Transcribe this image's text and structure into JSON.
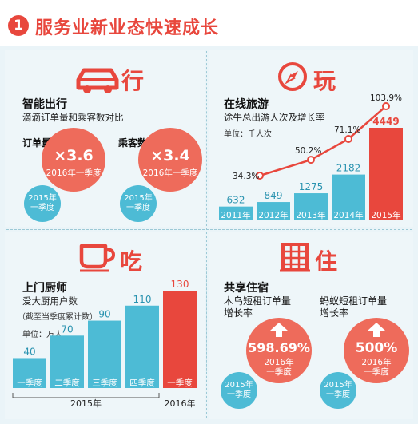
{
  "header": {
    "number": "1",
    "title": "服务业新业态快速成长"
  },
  "xing": {
    "category": "行",
    "icon": "car-icon",
    "section_title": "智能出行",
    "subtitle": "滴滴订单量和乘客数对比",
    "orders_label": "订单量",
    "passengers_label": "乘客数",
    "orders_multiplier": "×3.6",
    "passengers_multiplier": "×3.4",
    "period_2016": "2016年一季度",
    "period_2015_line1": "2015年",
    "period_2015_line2": "一季度"
  },
  "wan": {
    "category": "玩",
    "icon": "compass-icon",
    "section_title": "在线旅游",
    "subtitle": "途牛总出游人次及增长率",
    "unit": "单位：千人次"
  },
  "chi": {
    "category": "吃",
    "icon": "cup-icon",
    "section_title": "上门厨师",
    "subtitle": "爱大厨用户数",
    "note": "（截至当季度累计数）",
    "unit": "单位：万人",
    "year_2015": "2015年",
    "year_2016": "2016年"
  },
  "zhu": {
    "category": "住",
    "icon": "building-icon",
    "section_title": "共享住宿",
    "left_label_line1": "木鸟短租订单量",
    "left_label_line2": "增长率",
    "right_label_line1": "蚂蚁短租订单量",
    "right_label_line2": "增长率",
    "left_value": "598.69%",
    "right_value": "500%",
    "period_2016_line1": "2016年",
    "period_2016_line2": "一季度",
    "period_2015_line1": "2015年",
    "period_2015_line2": "一季度"
  },
  "colors": {
    "accent_red": "#e8473d",
    "teal": "#4dbbd5",
    "light_red": "#ee6b5b"
  },
  "chart_data": [
    {
      "type": "bar",
      "categories": [
        "2011年",
        "2012年",
        "2013年",
        "2014年",
        "2015年"
      ],
      "series": [
        {
          "values": [
            632,
            849,
            1275,
            2182,
            4449
          ]
        }
      ],
      "growth": {
        "categories": [
          "2012年",
          "2013年",
          "2014年",
          "2015年"
        ],
        "values": [
          "34.3%",
          "50.2%",
          "71.1%",
          "103.9%"
        ]
      }
    },
    {
      "type": "bar",
      "categories": [
        "一季度",
        "二季度",
        "三季度",
        "四季度",
        "一季度"
      ],
      "series": [
        {
          "values": [
            40,
            70,
            90,
            110,
            130
          ]
        }
      ]
    }
  ]
}
